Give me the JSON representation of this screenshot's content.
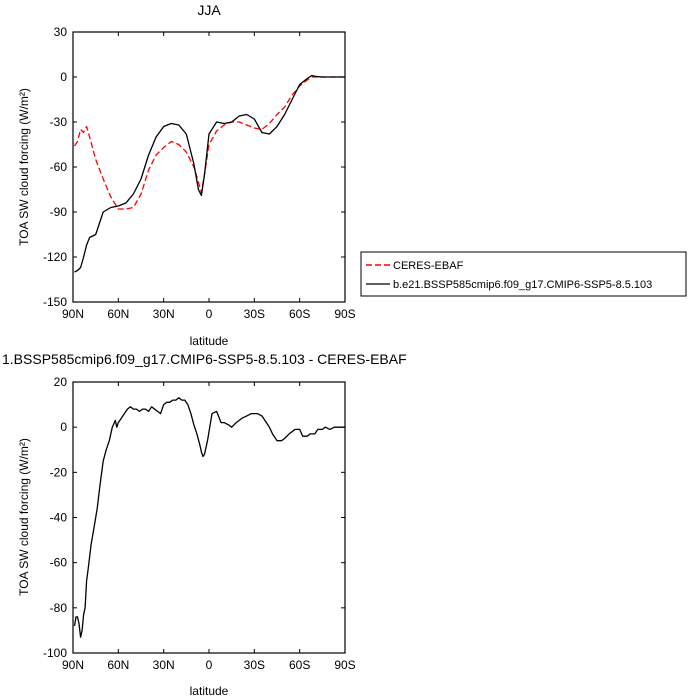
{
  "chart_data": [
    {
      "type": "line",
      "title": "JJA",
      "xlabel": "latitude",
      "ylabel": "TOA SW cloud forcing (W/m²)",
      "xlim": [
        90,
        -90
      ],
      "ylim": [
        -150,
        30
      ],
      "x_ticks": [
        90,
        60,
        30,
        0,
        -30,
        -60,
        -90
      ],
      "x_tick_labels": [
        "90N",
        "60N",
        "30N",
        "0",
        "30S",
        "60S",
        "90S"
      ],
      "y_ticks": [
        30,
        0,
        -30,
        -60,
        -90,
        -120,
        -150
      ],
      "y_tick_labels": [
        "30",
        "0",
        "-30",
        "-60",
        "-90",
        "-120",
        "-150"
      ],
      "legend_position": "right",
      "series": [
        {
          "name": "CERES-EBAF",
          "color": "#ff0000",
          "style": "dashed",
          "x": [
            89,
            87,
            85,
            83,
            81,
            79,
            75,
            70,
            65,
            60,
            55,
            50,
            45,
            40,
            35,
            30,
            25,
            20,
            15,
            10,
            7,
            5,
            3,
            0,
            -5,
            -10,
            -15,
            -20,
            -25,
            -30,
            -35,
            -40,
            -45,
            -50,
            -55,
            -60,
            -65,
            -68,
            -70,
            -75,
            -80,
            -85,
            -90
          ],
          "y": [
            -46,
            -43,
            -35,
            -37,
            -33,
            -40,
            -55,
            -68,
            -80,
            -88,
            -88,
            -87,
            -78,
            -62,
            -52,
            -47,
            -43,
            -45,
            -50,
            -60,
            -70,
            -77,
            -65,
            -45,
            -36,
            -32,
            -30,
            -30,
            -32,
            -34,
            -35,
            -31,
            -25,
            -20,
            -12,
            -6,
            -2,
            0,
            0,
            0,
            0,
            0,
            0
          ]
        },
        {
          "name": "b.e21.BSSP585cmip6.f09_g17.CMIP6-SSP5-8.5.103",
          "color": "#000000",
          "style": "solid",
          "x": [
            89,
            87,
            85,
            83,
            81,
            79,
            75,
            70,
            65,
            60,
            55,
            50,
            45,
            40,
            35,
            30,
            25,
            20,
            15,
            10,
            7,
            5,
            3,
            0,
            -5,
            -10,
            -15,
            -20,
            -25,
            -30,
            -35,
            -40,
            -45,
            -50,
            -55,
            -60,
            -65,
            -68,
            -70,
            -75,
            -80,
            -85,
            -90
          ],
          "y": [
            -130,
            -129,
            -127,
            -120,
            -112,
            -107,
            -105,
            -90,
            -87,
            -86,
            -84,
            -78,
            -68,
            -52,
            -40,
            -33,
            -31,
            -32,
            -38,
            -58,
            -75,
            -79,
            -65,
            -38,
            -30,
            -31,
            -30,
            -26,
            -25,
            -28,
            -37,
            -38,
            -33,
            -25,
            -15,
            -5,
            -1,
            1,
            0.5,
            0,
            0,
            0,
            0
          ]
        }
      ]
    },
    {
      "type": "line",
      "title": "1.BSSP585cmip6.f09_g17.CMIP6-SSP5-8.5.103 - CERES-EBAF",
      "xlabel": "latitude",
      "ylabel": "TOA SW cloud forcing (W/m²)",
      "xlim": [
        90,
        -90
      ],
      "ylim": [
        -100,
        20
      ],
      "x_ticks": [
        90,
        60,
        30,
        0,
        -30,
        -60,
        -90
      ],
      "x_tick_labels": [
        "90N",
        "60N",
        "30N",
        "0",
        "30S",
        "60S",
        "90S"
      ],
      "y_ticks": [
        20,
        0,
        -20,
        -40,
        -60,
        -80,
        -100
      ],
      "y_tick_labels": [
        "20",
        "0",
        "-20",
        "-40",
        "-60",
        "-80",
        "-100"
      ],
      "series": [
        {
          "color": "#000000",
          "style": "solid",
          "x": [
            89,
            88,
            87,
            86,
            85,
            84,
            83,
            82,
            81,
            80,
            78,
            76,
            74,
            72,
            70,
            68,
            66,
            64,
            62,
            61,
            60,
            58,
            56,
            54,
            52,
            50,
            48,
            46,
            44,
            42,
            40,
            38,
            36,
            34,
            32,
            30,
            28,
            26,
            24,
            22,
            20,
            18,
            16,
            14,
            12,
            10,
            8,
            6,
            5,
            4,
            3,
            1,
            0,
            -2,
            -5,
            -8,
            -10,
            -13,
            -15,
            -18,
            -20,
            -22,
            -25,
            -28,
            -30,
            -32,
            -35,
            -38,
            -40,
            -42,
            -45,
            -48,
            -50,
            -53,
            -55,
            -57,
            -60,
            -62,
            -65,
            -67,
            -70,
            -72,
            -75,
            -77,
            -80,
            -83,
            -85,
            -88,
            -90
          ],
          "y": [
            -88,
            -84,
            -84,
            -87,
            -93,
            -90,
            -83,
            -80,
            -68,
            -63,
            -52,
            -44,
            -36,
            -25,
            -15,
            -10,
            -6,
            0,
            3,
            0,
            2,
            4,
            6,
            8,
            9,
            8,
            8,
            7,
            8,
            8,
            7,
            9,
            8,
            7,
            6,
            10,
            11,
            11,
            12,
            12,
            13,
            12,
            12,
            10,
            6,
            1,
            -3,
            -8,
            -11,
            -13,
            -12,
            -6,
            -2,
            6,
            7,
            2,
            2,
            1,
            0,
            2,
            3,
            4,
            5,
            6,
            6,
            6,
            5,
            2,
            0,
            -3,
            -6,
            -6,
            -5,
            -3,
            -2,
            -1,
            -1,
            -4,
            -4,
            -3,
            -3,
            -1,
            -1,
            0,
            -1,
            0,
            0,
            0,
            0
          ]
        }
      ]
    }
  ]
}
